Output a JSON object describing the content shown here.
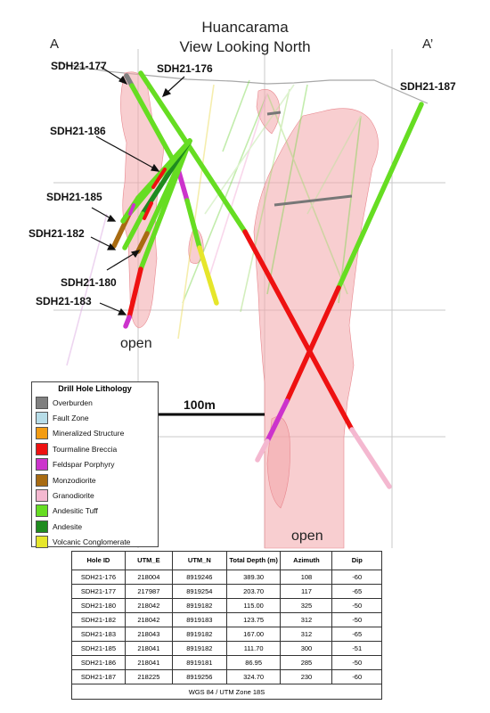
{
  "header": {
    "title_line1": "Huancarama",
    "title_line2": "View Looking North",
    "left_marker": "A",
    "right_marker": "A’"
  },
  "holes": {
    "h177": "SDH21-177",
    "h176": "SDH21-176",
    "h186": "SDH21-186",
    "h185": "SDH21-185",
    "h182": "SDH21-182",
    "h180": "SDH21-180",
    "h183": "SDH21-183",
    "h187": "SDH21-187"
  },
  "section_labels": {
    "open_left": "open",
    "open_bottom": "open"
  },
  "scale": {
    "label": "100m"
  },
  "colors": {
    "overburden": "#7f7f7f",
    "fault_zone": "#b7dde8",
    "mineralized_structure": "#f39c12",
    "tourmaline_breccia": "#ee1111",
    "feldspar_porphyry": "#cc33cc",
    "monzodiorite": "#a86b12",
    "granodiorite": "#f4b8d0",
    "andesitic_tuff": "#66dd22",
    "andesite": "#1f8b1f",
    "volcanic_conglomerate": "#e6e62b",
    "intrusive_shape": "#f2a6aa"
  },
  "legend": {
    "title": "Drill Hole Lithology",
    "items": [
      {
        "label": "Overburden",
        "color": "#7f7f7f"
      },
      {
        "label": "Fault Zone",
        "color": "#b7dde8"
      },
      {
        "label": "Mineralized Structure",
        "color": "#f39c12"
      },
      {
        "label": "Tourmaline Breccia",
        "color": "#ee1111"
      },
      {
        "label": "Feldspar Porphyry",
        "color": "#cc33cc"
      },
      {
        "label": "Monzodiorite",
        "color": "#a86b12"
      },
      {
        "label": "Granodiorite",
        "color": "#f4b8d0"
      },
      {
        "label": "Andesitic Tuff",
        "color": "#66dd22"
      },
      {
        "label": "Andesite",
        "color": "#1f8b1f"
      },
      {
        "label": "Volcanic Conglomerate",
        "color": "#e6e62b"
      }
    ]
  },
  "table": {
    "headers": [
      "Hole ID",
      "UTM_E",
      "UTM_N",
      "Total Depth (m)",
      "Azimuth",
      "Dip"
    ],
    "rows": [
      [
        "SDH21-176",
        "218004",
        "8919246",
        "389.30",
        "108",
        "-60"
      ],
      [
        "SDH21-177",
        "217987",
        "8919254",
        "203.70",
        "117",
        "-65"
      ],
      [
        "SDH21-180",
        "218042",
        "8919182",
        "115.00",
        "325",
        "-50"
      ],
      [
        "SDH21-182",
        "218042",
        "8919183",
        "123.75",
        "312",
        "-50"
      ],
      [
        "SDH21-183",
        "218043",
        "8919182",
        "167.00",
        "312",
        "-65"
      ],
      [
        "SDH21-185",
        "218041",
        "8919182",
        "111.70",
        "300",
        "-51"
      ],
      [
        "SDH21-186",
        "218041",
        "8919181",
        "86.95",
        "285",
        "-50"
      ],
      [
        "SDH21-187",
        "218225",
        "8919256",
        "324.70",
        "230",
        "-60"
      ]
    ],
    "footer": "WGS 84 / UTM Zone 18S"
  }
}
